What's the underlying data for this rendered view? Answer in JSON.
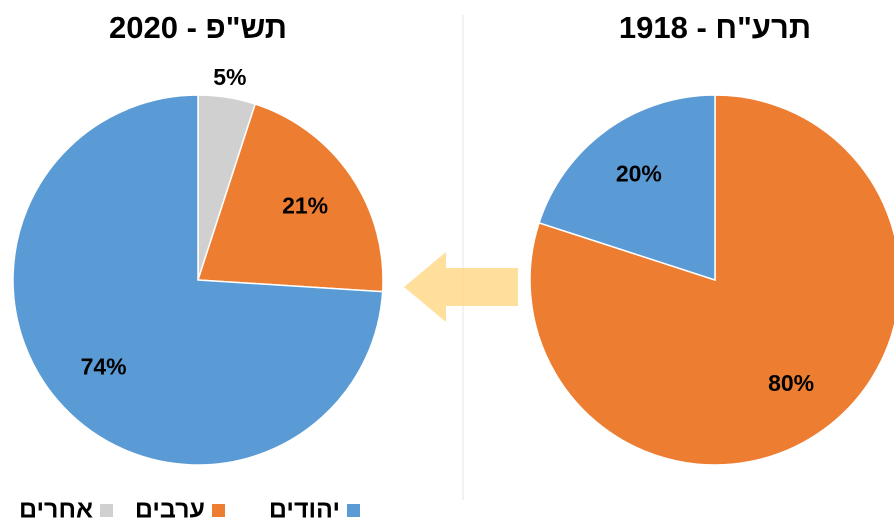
{
  "chart_data": [
    {
      "type": "pie",
      "title": "תש\"פ - 2020",
      "categories": [
        "אחרים",
        "ערבים",
        "יהודים"
      ],
      "values": [
        5,
        21,
        74
      ],
      "value_labels": [
        "5%",
        "21%",
        "74%"
      ],
      "colors": [
        "#d0d0d0",
        "#ed7d31",
        "#5b9bd5"
      ]
    },
    {
      "type": "pie",
      "title": "תרע\"ח - 1918",
      "values": [
        80,
        20
      ],
      "value_labels": [
        "80%",
        "20%"
      ],
      "colors": [
        "#ed7d31",
        "#5b9bd5"
      ]
    }
  ]
}
